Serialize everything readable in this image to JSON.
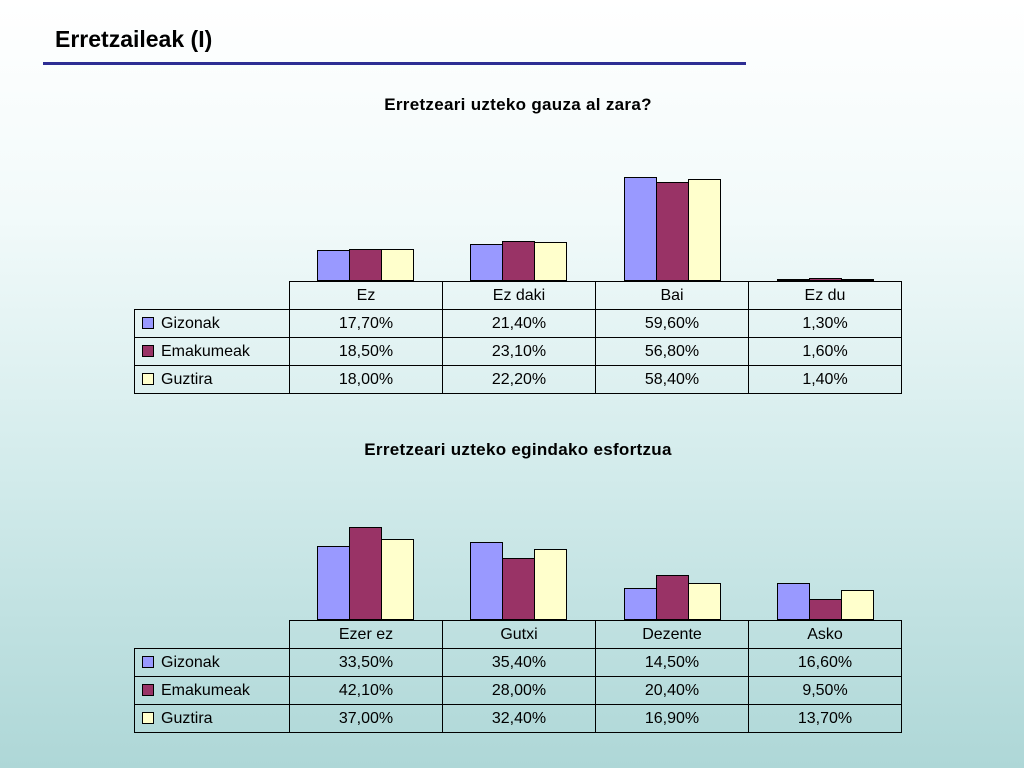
{
  "slide": {
    "title": "Erretzaileak (I)",
    "accent_color": "#2e2e94"
  },
  "series_colors": {
    "Gizonak": "#9999FF",
    "Emakumeak": "#993366",
    "Guztira": "#FFFFCC"
  },
  "chart_data": [
    {
      "type": "bar",
      "title": "Erretzeari uzteko gauza al zara?",
      "categories": [
        "Ez",
        "Ez daki",
        "Bai",
        "Ez du"
      ],
      "series": [
        {
          "name": "Gizonak",
          "color": "#9999FF",
          "values": [
            17.7,
            21.4,
            59.6,
            1.3
          ],
          "labels": [
            "17,70%",
            "21,40%",
            "59,60%",
            "1,30%"
          ]
        },
        {
          "name": "Emakumeak",
          "color": "#993366",
          "values": [
            18.5,
            23.1,
            56.8,
            1.6
          ],
          "labels": [
            "18,50%",
            "23,10%",
            "56,80%",
            "1,60%"
          ]
        },
        {
          "name": "Guztira",
          "color": "#FFFFCC",
          "values": [
            18.0,
            22.2,
            58.4,
            1.4
          ],
          "labels": [
            "18,00%",
            "22,20%",
            "58,40%",
            "1,40%"
          ]
        }
      ],
      "ylim": [
        0,
        80
      ],
      "grid": false,
      "legend_position": "table-left",
      "data_table": true
    },
    {
      "type": "bar",
      "title": "Erretzeari uzteko egindako esfortzua",
      "categories": [
        "Ezer ez",
        "Gutxi",
        "Dezente",
        "Asko"
      ],
      "series": [
        {
          "name": "Gizonak",
          "color": "#9999FF",
          "values": [
            33.5,
            35.4,
            14.5,
            16.6
          ],
          "labels": [
            "33,50%",
            "35,40%",
            "14,50%",
            "16,60%"
          ]
        },
        {
          "name": "Emakumeak",
          "color": "#993366",
          "values": [
            42.1,
            28.0,
            20.4,
            9.5
          ],
          "labels": [
            "42,10%",
            "28,00%",
            "20,40%",
            "9,50%"
          ]
        },
        {
          "name": "Guztira",
          "color": "#FFFFCC",
          "values": [
            37.0,
            32.4,
            16.9,
            13.7
          ],
          "labels": [
            "37,00%",
            "32,40%",
            "16,90%",
            "13,70%"
          ]
        }
      ],
      "ylim": [
        0,
        50
      ],
      "grid": false,
      "legend_position": "table-left",
      "data_table": true
    }
  ]
}
